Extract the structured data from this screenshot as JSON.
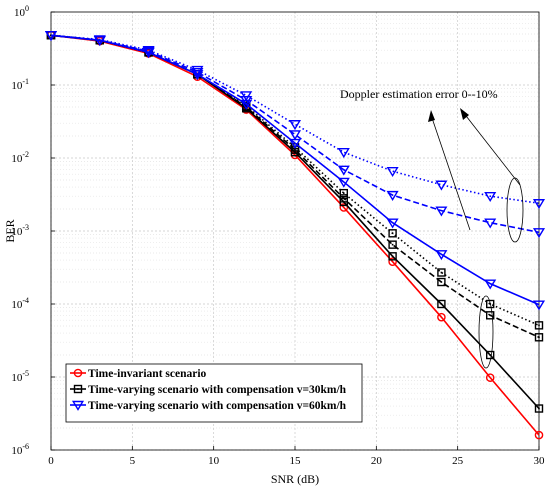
{
  "chart_data": {
    "type": "line",
    "xlabel": "SNR (dB)",
    "ylabel": "BER",
    "xlim": [
      0,
      30
    ],
    "ylim": [
      1e-06,
      1
    ],
    "yscale": "log",
    "grid": true,
    "legend_position": "bottom-left",
    "xticks": [
      "0",
      "5",
      "10",
      "15",
      "20",
      "25",
      "30"
    ],
    "yticks": [
      {
        "base": "10",
        "exp": "-6"
      },
      {
        "base": "10",
        "exp": "-5"
      },
      {
        "base": "10",
        "exp": "-4"
      },
      {
        "base": "10",
        "exp": "-3"
      },
      {
        "base": "10",
        "exp": "-2"
      },
      {
        "base": "10",
        "exp": "-1"
      },
      {
        "base": "10",
        "exp": "0"
      }
    ],
    "x": [
      0,
      3,
      6,
      9,
      12,
      15,
      18,
      21,
      24,
      27,
      30
    ],
    "series": [
      {
        "name": "Time-invariant scenario",
        "color": "#ff0000",
        "marker": "circle",
        "style": "solid",
        "values": [
          0.48,
          0.4,
          0.27,
          0.13,
          0.046,
          0.011,
          0.0021,
          0.00038,
          6.6e-05,
          9.8e-06,
          1.6e-06
        ]
      },
      {
        "name": "Time-varying scenario with compensation v=30km/h",
        "color": "#000000",
        "marker": "square",
        "style": "solid",
        "values": [
          0.48,
          0.41,
          0.28,
          0.14,
          0.048,
          0.012,
          0.0025,
          0.00045,
          0.0001,
          2e-05,
          3.7e-06
        ]
      },
      {
        "name": "",
        "color": "#000000",
        "marker": "square",
        "style": "dashed",
        "values": [
          0.48,
          0.41,
          0.28,
          0.14,
          0.05,
          0.013,
          0.0028,
          0.00065,
          0.0002,
          7e-05,
          3.5e-05
        ]
      },
      {
        "name": "",
        "color": "#000000",
        "marker": "square",
        "style": "dotted",
        "values": [
          0.48,
          0.41,
          0.28,
          0.14,
          0.052,
          0.014,
          0.0033,
          0.00093,
          0.00027,
          0.0001,
          5.1e-05
        ]
      },
      {
        "name": "Time-varying scenario with compensation v=60km/h",
        "color": "#0000ff",
        "marker": "triangle-down",
        "style": "solid",
        "values": [
          0.48,
          0.41,
          0.28,
          0.14,
          0.055,
          0.016,
          0.0047,
          0.0013,
          0.00048,
          0.00019,
          9.8e-05
        ]
      },
      {
        "name": "",
        "color": "#0000ff",
        "marker": "triangle-down",
        "style": "dashed",
        "values": [
          0.48,
          0.41,
          0.29,
          0.15,
          0.062,
          0.021,
          0.0069,
          0.0031,
          0.0019,
          0.0013,
          0.00096
        ]
      },
      {
        "name": "",
        "color": "#0000ff",
        "marker": "triangle-down",
        "style": "dotted",
        "values": [
          0.48,
          0.42,
          0.3,
          0.16,
          0.072,
          0.029,
          0.012,
          0.0066,
          0.0043,
          0.003,
          0.0024
        ]
      }
    ],
    "annotations": [
      {
        "text": "Doppler estimation error 0--10%"
      }
    ]
  }
}
